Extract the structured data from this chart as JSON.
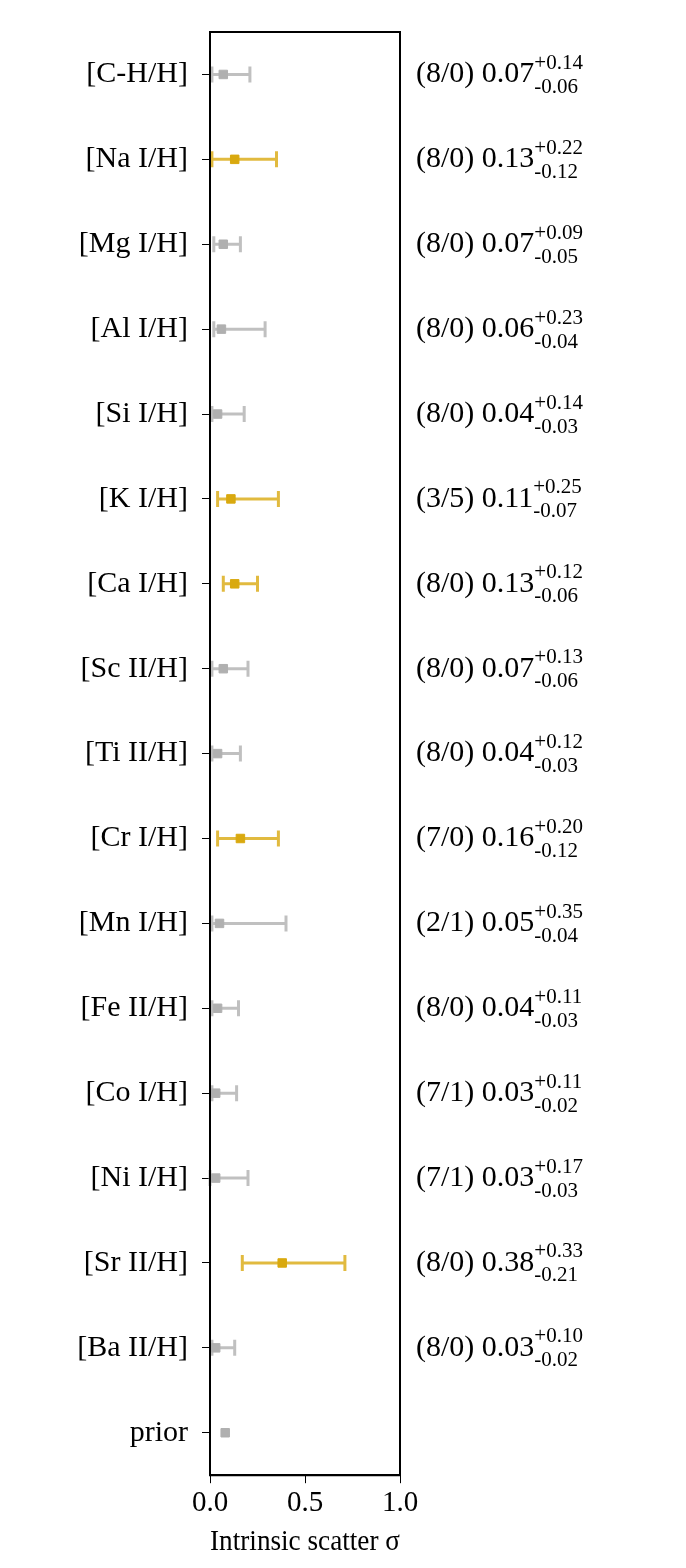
{
  "chart_data": {
    "type": "scatter",
    "orientation": "horizontal",
    "xlabel": "Intrinsic scatter σ",
    "categories": [
      "[C-H/H]",
      "[Na I/H]",
      "[Mg I/H]",
      "[Al I/H]",
      "[Si I/H]",
      "[K I/H]",
      "[Ca I/H]",
      "[Sc II/H]",
      "[Ti II/H]",
      "[Cr I/H]",
      "[Mn I/H]",
      "[Fe II/H]",
      "[Co I/H]",
      "[Ni I/H]",
      "[Sr II/H]",
      "[Ba II/H]",
      "prior"
    ],
    "values": [
      0.07,
      0.13,
      0.07,
      0.06,
      0.04,
      0.11,
      0.13,
      0.07,
      0.04,
      0.16,
      0.05,
      0.04,
      0.03,
      0.03,
      0.38,
      0.03,
      0.08
    ],
    "errors": [
      [
        0.01,
        0.21
      ],
      [
        0.01,
        0.35
      ],
      [
        0.02,
        0.16
      ],
      [
        0.02,
        0.29
      ],
      [
        0.01,
        0.18
      ],
      [
        0.04,
        0.36
      ],
      [
        0.07,
        0.25
      ],
      [
        0.01,
        0.2
      ],
      [
        0.01,
        0.16
      ],
      [
        0.04,
        0.36
      ],
      [
        0.01,
        0.4
      ],
      [
        0.01,
        0.15
      ],
      [
        0.01,
        0.14
      ],
      [
        0.0,
        0.2
      ],
      [
        0.17,
        0.71
      ],
      [
        0.01,
        0.13
      ],
      null
    ],
    "colors": [
      "#b0b0b0",
      "#d9a90f",
      "#b0b0b0",
      "#b0b0b0",
      "#b0b0b0",
      "#d9a90f",
      "#d9a90f",
      "#b0b0b0",
      "#b0b0b0",
      "#d9a90f",
      "#b0b0b0",
      "#b0b0b0",
      "#b0b0b0",
      "#b0b0b0",
      "#d9a90f",
      "#b0b0b0",
      "#b0b0b0"
    ],
    "value_labels": [
      "(8/0) 0.07$^{+0.14}$$_{-0.06}$",
      "(8/0) 0.13$^{+0.22}$$_{-0.12}$",
      "(8/0) 0.07$^{+0.09}$$_{-0.05}$",
      "(8/0) 0.06$^{+0.23}$$_{-0.04}$",
      "(8/0) 0.04$^{+0.14}$$_{-0.03}$",
      "(3/5) 0.11$^{+0.25}$$_{-0.07}$",
      "(8/0) 0.13$^{+0.12}$$_{-0.06}$",
      "(8/0) 0.07$^{+0.13}$$_{-0.06}$",
      "(8/0) 0.04$^{+0.12}$$_{-0.03}$",
      "(7/0) 0.16$^{+0.20}$$_{-0.12}$",
      "(2/1) 0.05$^{+0.35}$$_{-0.04}$",
      "(8/0) 0.04$^{+0.11}$$_{-0.03}$",
      "(7/1) 0.03$^{+0.11}$$_{-0.02}$",
      "(7/1) 0.03$^{+0.17}$$_{-0.03}$",
      "(8/0) 0.38$^{+0.33}$$_{-0.21}$",
      "(8/0) 0.03$^{+0.10}$$_{-0.02}$",
      null
    ],
    "xlim": [
      0,
      1
    ],
    "xticks": [
      {
        "value": 0,
        "label": "0.0"
      },
      {
        "value": 0.5,
        "label": "0.5"
      },
      {
        "value": 1,
        "label": "1.0"
      }
    ],
    "grid": false,
    "legend": false,
    "marker": "square"
  }
}
